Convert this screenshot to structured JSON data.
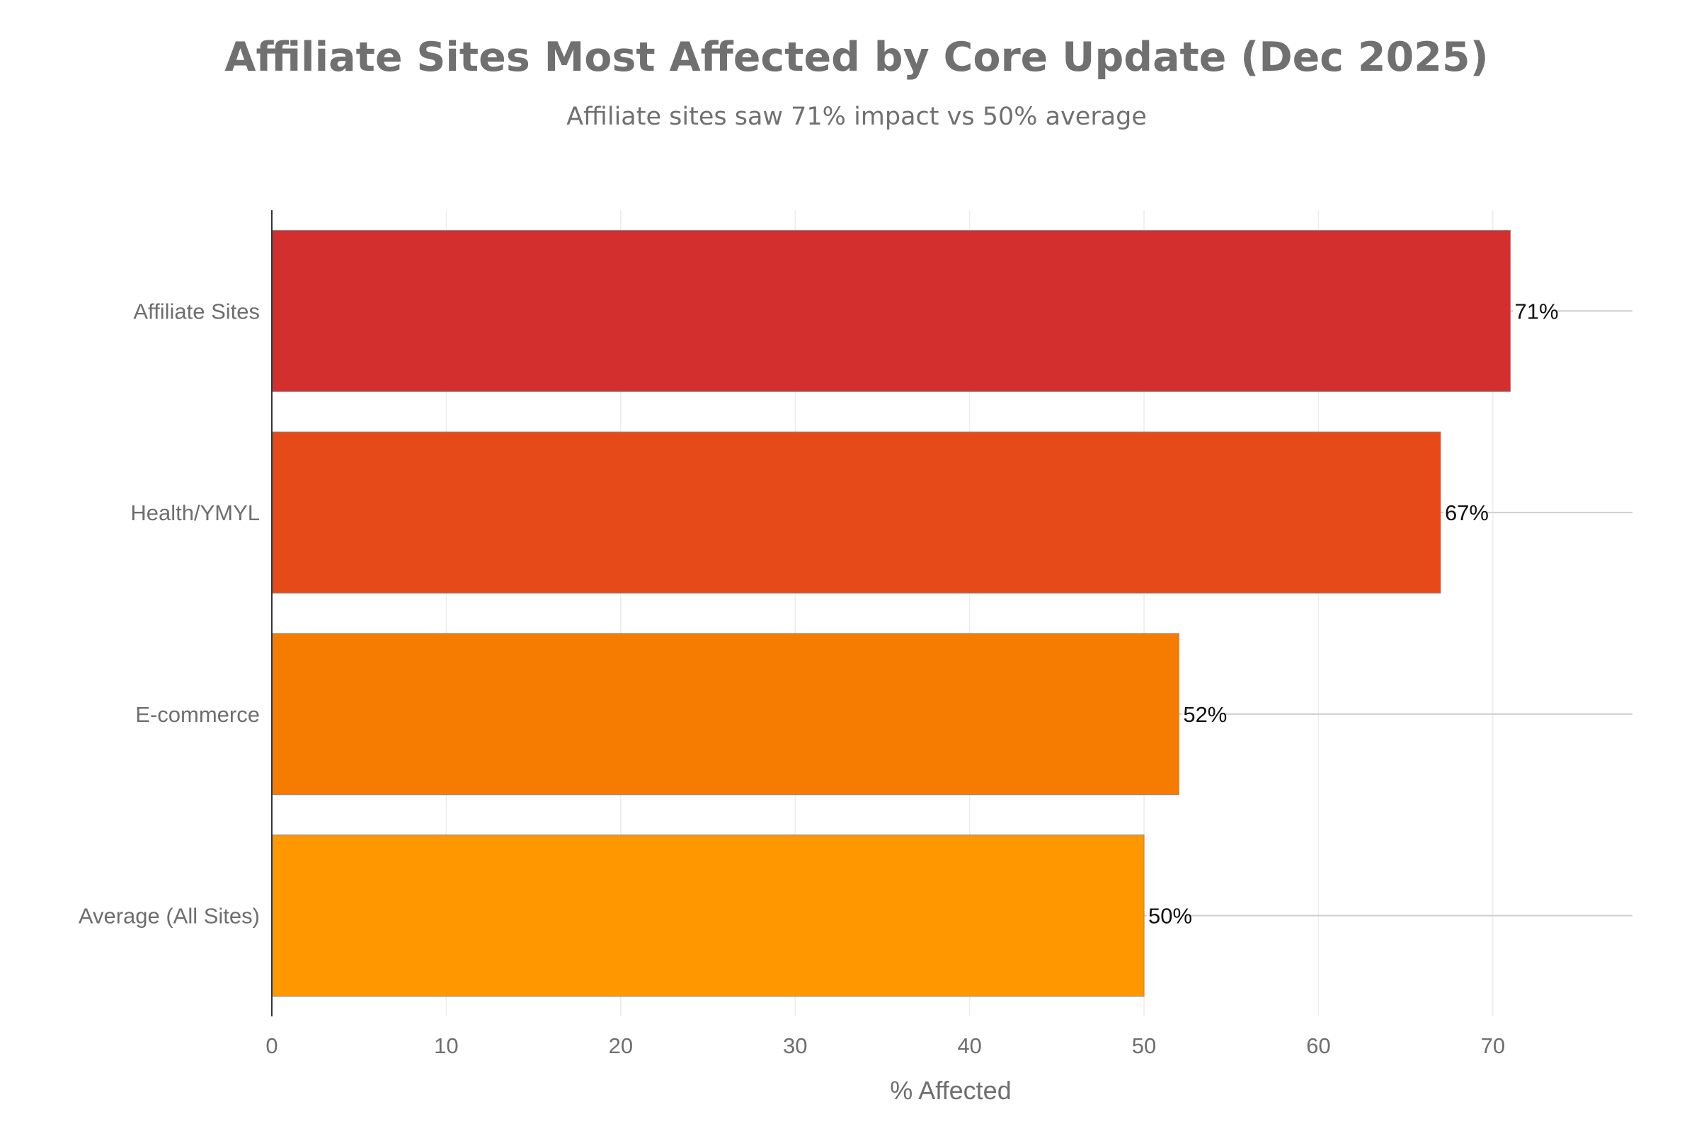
{
  "chart_data": {
    "type": "bar",
    "orientation": "horizontal",
    "title": "Affiliate Sites Most Affected by Core Update (Dec 2025)",
    "subtitle": "Affiliate sites saw 71% impact vs 50% average",
    "xlabel": "% Affected",
    "ylabel": "",
    "xlim": [
      0,
      78
    ],
    "xticks": [
      0,
      10,
      20,
      30,
      40,
      50,
      60,
      70
    ],
    "grid": true,
    "legend": "none",
    "categories": [
      "Affiliate Sites",
      "Health/YMYL",
      "E-commerce",
      "Average (All Sites)"
    ],
    "values": [
      71,
      67,
      52,
      50
    ],
    "data_labels": [
      "71%",
      "67%",
      "52%",
      "50%"
    ],
    "colors": [
      "#d32f2f",
      "#e64a19",
      "#f57c00",
      "#ff9800"
    ]
  }
}
